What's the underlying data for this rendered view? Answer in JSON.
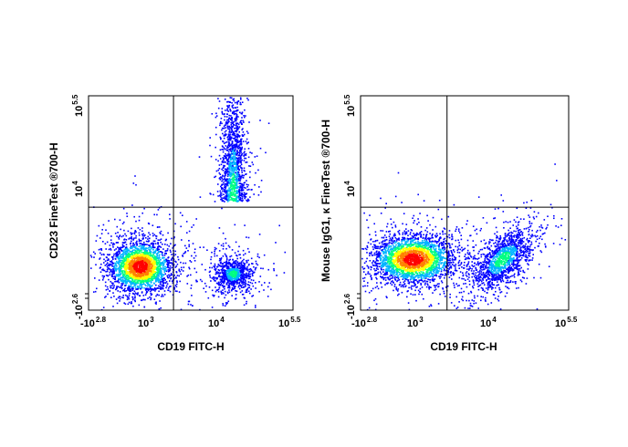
{
  "chart_data": [
    {
      "type": "scatter",
      "subtype": "flow-cytometry-density-dot-plot",
      "xlabel": "CD19 FITC-H",
      "ylabel": "CD23 FineTest ®700-H",
      "x_scale": "logicle",
      "y_scale": "logicle",
      "xlim": [
        "-10^2.8",
        "10^5.5"
      ],
      "ylim": [
        "-10^2.6",
        "10^5.5"
      ],
      "x_ticks": [
        {
          "base": "-10",
          "exp": "2.8"
        },
        {
          "base": "10",
          "exp": "3"
        },
        {
          "base": "10",
          "exp": "4"
        },
        {
          "base": "10",
          "exp": "5.5"
        }
      ],
      "y_ticks": [
        {
          "base": "-10",
          "exp": "2.6"
        },
        {
          "base": "10",
          "exp": "4"
        },
        {
          "base": "10",
          "exp": "5.5"
        }
      ],
      "quadrant_gate": {
        "x": 3.35,
        "y": 3.75
      },
      "populations": [
        {
          "label": "CD19- CD23-",
          "x_center": 2.85,
          "y_center": 2.95,
          "density": "high"
        },
        {
          "label": "CD19+ CD23+",
          "x_center": 4.3,
          "y_center": 4.1,
          "density": "medium"
        },
        {
          "label": "CD19+ CD23-",
          "x_center": 4.3,
          "y_center": 2.85,
          "density": "medium"
        }
      ],
      "density_colors": [
        "#0000ff",
        "#00b4ff",
        "#00ff80",
        "#ffff00",
        "#ff8000",
        "#ff0000"
      ]
    },
    {
      "type": "scatter",
      "subtype": "flow-cytometry-density-dot-plot",
      "xlabel": "CD19 FITC-H",
      "ylabel": "Mouse IgG1, κ  FineTest ®700-H",
      "x_scale": "logicle",
      "y_scale": "logicle",
      "xlim": [
        "-10^2.8",
        "10^5.5"
      ],
      "ylim": [
        "-10^2.6",
        "10^5.5"
      ],
      "x_ticks": [
        {
          "base": "-10",
          "exp": "2.8"
        },
        {
          "base": "10",
          "exp": "3"
        },
        {
          "base": "10",
          "exp": "4"
        },
        {
          "base": "10",
          "exp": "5.5"
        }
      ],
      "y_ticks": [
        {
          "base": "-10",
          "exp": "2.6"
        },
        {
          "base": "10",
          "exp": "4"
        },
        {
          "base": "10",
          "exp": "5.5"
        }
      ],
      "quadrant_gate": {
        "x": 3.35,
        "y": 3.75
      },
      "populations": [
        {
          "label": "CD19- isotype",
          "x_center": 2.85,
          "y_center": 3.05,
          "density": "high"
        },
        {
          "label": "CD19+ isotype",
          "x_center": 4.2,
          "y_center": 3.05,
          "density": "medium"
        }
      ],
      "density_colors": [
        "#0000ff",
        "#00b4ff",
        "#00ff80",
        "#ffff00",
        "#ff8000",
        "#ff0000"
      ]
    }
  ]
}
